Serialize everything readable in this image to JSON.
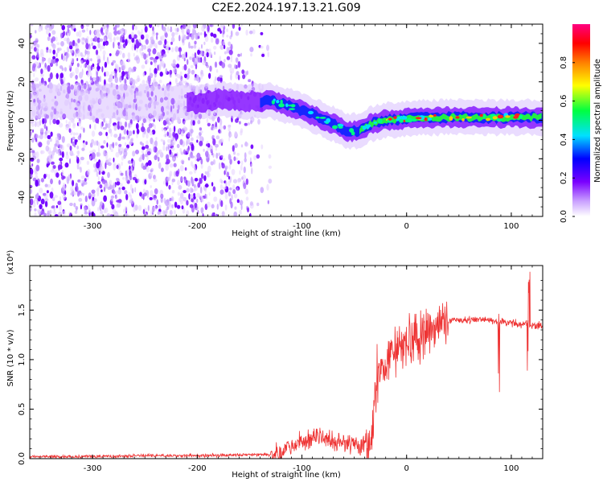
{
  "title": "C2E2.2024.197.13.21.G09",
  "chart_data": [
    {
      "type": "heatmap",
      "xlabel": "Height of straight line (km)",
      "ylabel": "Frequency (Hz)",
      "xlim": [
        -360,
        130
      ],
      "ylim": [
        -50,
        50
      ],
      "xticks": [
        -300,
        -200,
        -100,
        0,
        100
      ],
      "yticks": [
        -40,
        -20,
        0,
        20,
        40
      ],
      "grid": false,
      "colorbar": {
        "label": "Normalized spectral amplitude",
        "range": [
          0,
          1
        ],
        "ticks": [
          0.0,
          0.2,
          0.4,
          0.6,
          0.8
        ],
        "tick_labels": [
          "0.0",
          "0.2",
          "0.4",
          "0.6",
          "0.8"
        ],
        "colors": [
          "#ffffff",
          "#c9a0ff",
          "#7a00ff",
          "#0000ff",
          "#00e0ff",
          "#00ff40",
          "#ffff00",
          "#ff8000",
          "#ff0000",
          "#ff0080"
        ]
      },
      "ridge": {
        "x": [
          -360,
          -200,
          -180,
          -160,
          -130,
          -110,
          -90,
          -70,
          -55,
          -45,
          -35,
          -20,
          0,
          20,
          60,
          100,
          130
        ],
        "y": [
          10,
          9,
          11,
          10,
          10,
          7,
          3,
          -2,
          -6,
          -5,
          -2,
          0,
          1,
          1.5,
          1.5,
          1.5,
          1.5
        ]
      }
    },
    {
      "type": "line",
      "xlabel": "Height of straight line (km)",
      "ylabel": "SNR (10 * v/v)",
      "multiplier": "(x10⁴)",
      "xlim": [
        -360,
        130
      ],
      "ylim": [
        0,
        1.95
      ],
      "xticks": [
        -300,
        -200,
        -100,
        0,
        100
      ],
      "yticks": [
        0.0,
        0.5,
        1.0,
        1.5
      ],
      "ytick_labels": [
        "0.0",
        "0.5",
        "1.0",
        "1.5"
      ],
      "grid": false,
      "series": [
        {
          "color": "#ee3333",
          "x": [
            -360,
            -300,
            -250,
            -200,
            -160,
            -130,
            -120,
            -110,
            -100,
            -90,
            -80,
            -70,
            -60,
            -50,
            -40,
            -35,
            -32,
            -30,
            -28,
            -25,
            -20,
            -15,
            -10,
            -5,
            0,
            10,
            20,
            30,
            40,
            50,
            60,
            80,
            90,
            100,
            110,
            120,
            130
          ],
          "y": [
            0.02,
            0.02,
            0.03,
            0.03,
            0.04,
            0.04,
            0.07,
            0.12,
            0.18,
            0.22,
            0.2,
            0.18,
            0.16,
            0.15,
            0.14,
            0.2,
            0.35,
            0.6,
            0.8,
            0.9,
            0.95,
            1.0,
            1.05,
            1.1,
            1.15,
            1.22,
            1.28,
            1.35,
            1.4,
            1.4,
            1.4,
            1.4,
            1.38,
            1.37,
            1.36,
            1.35,
            1.34
          ]
        }
      ]
    }
  ]
}
